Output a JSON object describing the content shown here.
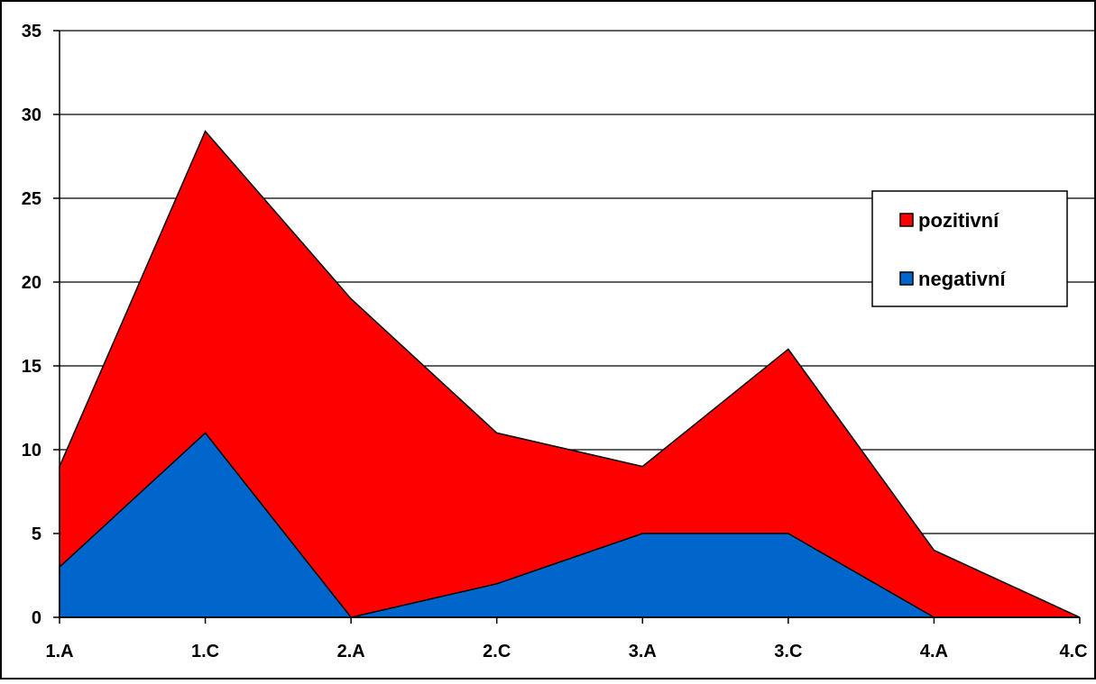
{
  "chart_data": {
    "type": "area",
    "stacked": false,
    "title": "",
    "xlabel": "",
    "ylabel": "",
    "categories": [
      "1.A",
      "1.C",
      "2.A",
      "2.C",
      "3.A",
      "3.C",
      "4.A",
      "4.C"
    ],
    "ylim": [
      0,
      35
    ],
    "yticks": [
      0,
      5,
      10,
      15,
      20,
      25,
      30,
      35
    ],
    "grid": true,
    "legend_position": "right",
    "series": [
      {
        "name": "pozitivní",
        "color": "#ff0000",
        "values": [
          9,
          29,
          19,
          11,
          9,
          16,
          4,
          0
        ]
      },
      {
        "name": "negativní",
        "color": "#0066cc",
        "values": [
          3,
          11,
          0,
          2,
          5,
          5,
          0,
          0
        ]
      }
    ]
  }
}
